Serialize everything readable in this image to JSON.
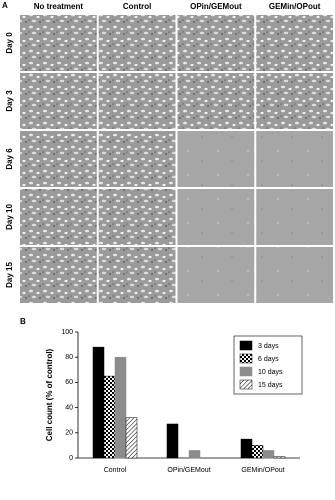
{
  "panel_a": {
    "label": "A",
    "columns": [
      "No treatment",
      "Control",
      "OPin/GEMout",
      "GEMin/OPout"
    ],
    "rows": [
      "Day 0",
      "Day 3",
      "Day 6",
      "Day 10",
      "Day 15"
    ]
  },
  "chart_data": {
    "type": "bar",
    "panel_label": "B",
    "y_label": "Cell count (% of control)",
    "categories": [
      "Control",
      "OPin/GEMout",
      "GEMin/OPout"
    ],
    "series": [
      {
        "name": "3 days",
        "color": "#000000",
        "pattern": "solid",
        "values": [
          88,
          27,
          15
        ]
      },
      {
        "name": "6 days",
        "color": "#000000",
        "pattern": "checker",
        "values": [
          65,
          0,
          10
        ]
      },
      {
        "name": "10 days",
        "color": "#8c8c8c",
        "pattern": "solid",
        "values": [
          80,
          6,
          6
        ]
      },
      {
        "name": "15 days",
        "color": "#000000",
        "pattern": "hatch",
        "values": [
          32,
          0,
          1
        ]
      }
    ],
    "ylim": [
      0,
      100
    ],
    "yticks": [
      0,
      20,
      40,
      60,
      80,
      100
    ],
    "legend": "top-right"
  }
}
